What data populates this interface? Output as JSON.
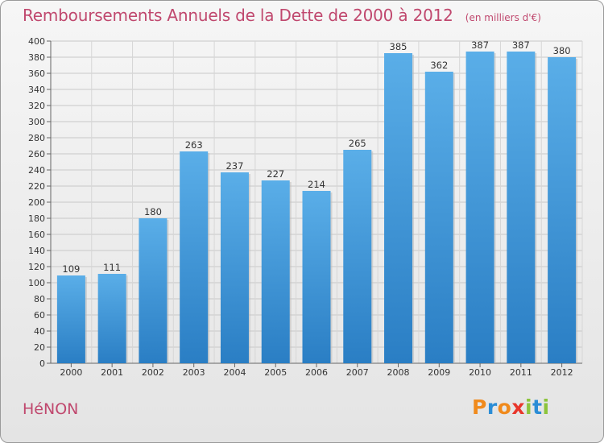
{
  "header": {
    "title": "Remboursements Annuels de la Dette de 2000 à 2012",
    "subtitle": "(en milliers d'€)"
  },
  "footer": {
    "town": "HéNON",
    "logo": "Proxiti"
  },
  "colors": {
    "title": "#c0486e",
    "bar_light": "#5aaee8",
    "bar_dark": "#2a7ec4",
    "logo_letters": [
      "#f08a1c",
      "#2b8dd6",
      "#f08a1c",
      "#e8362b",
      "#8cc43c",
      "#2b8dd6",
      "#8cc43c"
    ]
  },
  "chart_data": {
    "type": "bar",
    "categories": [
      "2000",
      "2001",
      "2002",
      "2003",
      "2004",
      "2005",
      "2006",
      "2007",
      "2008",
      "2009",
      "2010",
      "2011",
      "2012"
    ],
    "values": [
      109,
      111,
      180,
      263,
      237,
      227,
      214,
      265,
      385,
      362,
      387,
      387,
      380
    ],
    "ylim": [
      0,
      400
    ],
    "ytick_step": 20,
    "grid": true,
    "data_labels": true
  }
}
